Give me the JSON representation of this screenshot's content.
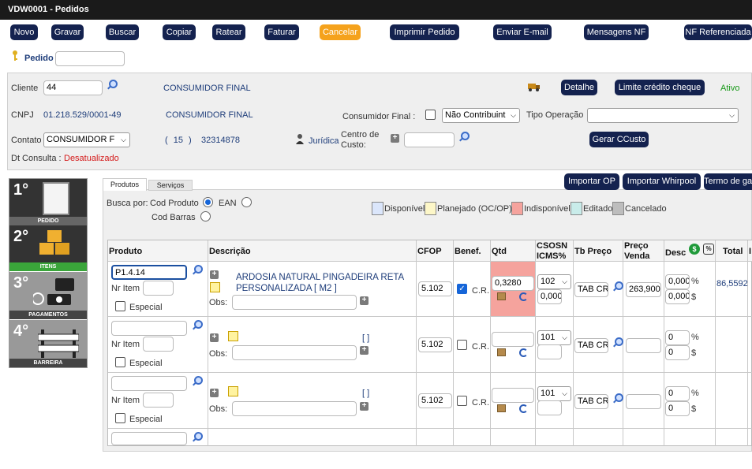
{
  "window": {
    "title": "VDW0001 - Pedidos"
  },
  "toolbar": {
    "novo": "Novo",
    "gravar": "Gravar",
    "buscar": "Buscar",
    "copiar": "Copiar",
    "ratear": "Ratear",
    "faturar": "Faturar",
    "cancelar": "Cancelar",
    "imprimir": "Imprimir Pedido",
    "email": "Enviar E-mail",
    "mensagens": "Mensagens NF",
    "nf_ref": "NF Referenciada"
  },
  "pedido": {
    "label": "Pedido",
    "value": ""
  },
  "cliente": {
    "label": "Cliente",
    "code": "44",
    "name": "CONSUMIDOR FINAL",
    "detalhe": "Detalhe",
    "limite": "Limite crédito cheque",
    "status": "Ativo",
    "cnpj_label": "CNPJ",
    "cnpj": "01.218.529/0001-49",
    "name2": "CONSUMIDOR FINAL",
    "consumidor_final_label": "Consumidor Final :",
    "contribuinte": "Não Contribuint",
    "tipo_operacao_label": "Tipo Operação",
    "tipo_operacao": "",
    "contato_label": "Contato",
    "contato": "CONSUMIDOR F",
    "ddd": "( 15 )",
    "phone": "32314878",
    "pessoa": "Jurídica",
    "centro_custo_label": "Centro de Custo:",
    "centro_custo": "",
    "gerar_ccusto": "Gerar CCusto",
    "dt_consulta_label": "Dt Consulta :",
    "dt_consulta": "Desatualizado"
  },
  "steps": [
    {
      "num": "1°",
      "label": "PEDIDO"
    },
    {
      "num": "2°",
      "label": "ITENS"
    },
    {
      "num": "3°",
      "label": "PAGAMENTOS"
    },
    {
      "num": "4°",
      "label": "BARREIRA"
    }
  ],
  "tabs": {
    "produtos": "Produtos",
    "servicos": "Serviços"
  },
  "actions": {
    "importar_op": "Importar OP",
    "importar_whirpool": "Importar Whirpool",
    "termo": "Termo de ga"
  },
  "busca": {
    "label": "Busca por:",
    "cod_produto": "Cod Produto",
    "ean": "EAN",
    "cod_barras": "Cod Barras"
  },
  "legend": [
    {
      "label": "Disponível",
      "color": "#dbe6fb"
    },
    {
      "label": "Planejado (OC/OP)",
      "color": "#fdf7c8"
    },
    {
      "label": "Indisponível",
      "color": "#f5a39d"
    },
    {
      "label": "Editado",
      "color": "#c9ecea"
    },
    {
      "label": "Cancelado",
      "color": "#bdbdbd"
    }
  ],
  "columns": {
    "produto": "Produto",
    "descricao": "Descrição",
    "cfop": "CFOP",
    "benef": "Benef.",
    "qtd": "Qtd",
    "csosn": "CSOSN",
    "icms": "ICMS%",
    "tb_preco": "Tb Preço",
    "preco": "Preço",
    "venda": "Venda",
    "desc": "Desc",
    "total": "Total",
    "extra": "I"
  },
  "row_labels": {
    "nr_item": "Nr Item",
    "especial": "Especial",
    "obs": "Obs:",
    "cr": "C.R.",
    "pct": "%",
    "cur": "$"
  },
  "rows": [
    {
      "produto": "P1.4.14",
      "descricao": "ARDOSIA NATURAL PINGADEIRA RETA PERSONALIZADA [ M2 ]",
      "cfop": "5.102",
      "benef": true,
      "qtd": "0,3280",
      "csosn": "102",
      "icms": "0,000",
      "tb_preco": "TAB CR",
      "preco": "263,900",
      "desc_pct": "0,000",
      "desc_val": "0,000",
      "total": "86,5592"
    },
    {
      "produto": "",
      "descricao": "[ ]",
      "cfop": "5.102",
      "benef": false,
      "qtd": "",
      "csosn": "101",
      "icms": "",
      "tb_preco": "TAB CR",
      "preco": "",
      "desc_pct": "0",
      "desc_val": "0",
      "total": ""
    },
    {
      "produto": "",
      "descricao": "[ ]",
      "cfop": "5.102",
      "benef": false,
      "qtd": "",
      "csosn": "101",
      "icms": "",
      "tb_preco": "TAB CR",
      "preco": "",
      "desc_pct": "0",
      "desc_val": "0",
      "total": ""
    }
  ]
}
